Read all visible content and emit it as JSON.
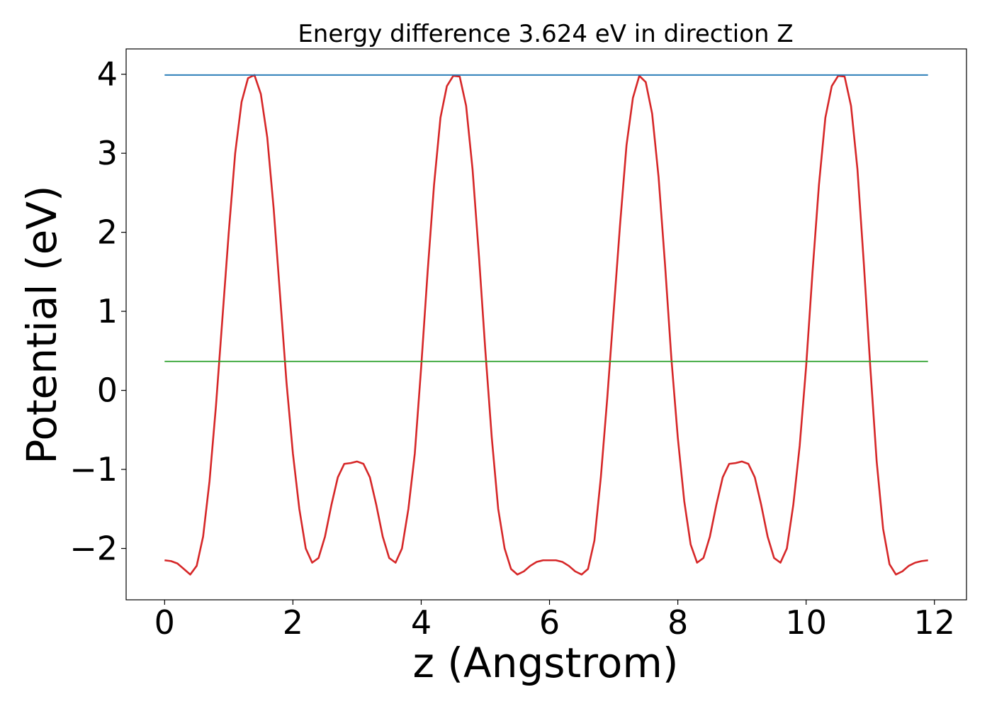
{
  "chart_data": {
    "type": "line",
    "title": "Energy difference 3.624 eV in direction Z",
    "xlabel": "z (Angstrom)",
    "ylabel": "Potential (eV)",
    "xlim": [
      -0.6,
      12.5
    ],
    "ylim": [
      -2.65,
      4.32
    ],
    "xticks": [
      0,
      2,
      4,
      6,
      8,
      10,
      12
    ],
    "xtick_labels": [
      "0",
      "2",
      "4",
      "6",
      "8",
      "10",
      "12"
    ],
    "yticks": [
      -2,
      -1,
      0,
      1,
      2,
      3,
      4
    ],
    "ytick_labels": [
      "−2",
      "−1",
      "0",
      "1",
      "2",
      "3",
      "4"
    ],
    "grid": false,
    "series": [
      {
        "color": "#d62728",
        "x": [
          0.0,
          0.1,
          0.2,
          0.3,
          0.4,
          0.5,
          0.6,
          0.7,
          0.8,
          0.9,
          1.0,
          1.1,
          1.2,
          1.3,
          1.4,
          1.5,
          1.6,
          1.7,
          1.8,
          1.9,
          2.0,
          2.1,
          2.2,
          2.3,
          2.4,
          2.5,
          2.6,
          2.7,
          2.8,
          2.9,
          3.0,
          3.1,
          3.2,
          3.3,
          3.4,
          3.5,
          3.6,
          3.7,
          3.8,
          3.9,
          4.0,
          4.1,
          4.2,
          4.3,
          4.4,
          4.5,
          4.6,
          4.7,
          4.8,
          4.9,
          5.0,
          5.1,
          5.2,
          5.3,
          5.4,
          5.5,
          5.6,
          5.7,
          5.8,
          5.9,
          6.0,
          6.1,
          6.2,
          6.3,
          6.4,
          6.5,
          6.6,
          6.7,
          6.8,
          6.9,
          7.0,
          7.1,
          7.2,
          7.3,
          7.4,
          7.5,
          7.6,
          7.7,
          7.8,
          7.9,
          8.0,
          8.1,
          8.2,
          8.3,
          8.4,
          8.5,
          8.6,
          8.7,
          8.8,
          8.9,
          9.0,
          9.1,
          9.2,
          9.3,
          9.4,
          9.5,
          9.6,
          9.7,
          9.8,
          9.9,
          10.0,
          10.1,
          10.2,
          10.3,
          10.4,
          10.5,
          10.6,
          10.7,
          10.8,
          10.9,
          11.0,
          11.1,
          11.2,
          11.3,
          11.4,
          11.5,
          11.6,
          11.7,
          11.8,
          11.9
        ],
        "y": [
          -2.15,
          -2.16,
          -2.19,
          -2.26,
          -2.33,
          -2.22,
          -1.85,
          -1.15,
          -0.2,
          0.9,
          2.0,
          3.0,
          3.65,
          3.95,
          3.99,
          3.75,
          3.2,
          2.3,
          1.2,
          0.1,
          -0.8,
          -1.5,
          -2.0,
          -2.18,
          -2.12,
          -1.85,
          -1.45,
          -1.1,
          -0.93,
          -0.92,
          -0.9,
          -0.93,
          -1.1,
          -1.45,
          -1.85,
          -2.12,
          -2.18,
          -2.0,
          -1.5,
          -0.8,
          0.3,
          1.5,
          2.6,
          3.45,
          3.85,
          3.98,
          3.97,
          3.6,
          2.8,
          1.7,
          0.5,
          -0.6,
          -1.5,
          -2.0,
          -2.26,
          -2.33,
          -2.29,
          -2.22,
          -2.17,
          -2.15,
          -2.15,
          -2.15,
          -2.17,
          -2.22,
          -2.29,
          -2.33,
          -2.26,
          -1.9,
          -1.1,
          -0.1,
          1.0,
          2.1,
          3.1,
          3.7,
          3.98,
          3.9,
          3.5,
          2.7,
          1.6,
          0.4,
          -0.6,
          -1.4,
          -1.95,
          -2.18,
          -2.12,
          -1.85,
          -1.45,
          -1.1,
          -0.93,
          -0.92,
          -0.9,
          -0.93,
          -1.1,
          -1.45,
          -1.85,
          -2.12,
          -2.18,
          -2.0,
          -1.45,
          -0.7,
          0.3,
          1.5,
          2.6,
          3.45,
          3.85,
          3.98,
          3.97,
          3.6,
          2.8,
          1.6,
          0.3,
          -0.9,
          -1.75,
          -2.2,
          -2.33,
          -2.29,
          -2.22,
          -2.18,
          -2.16,
          -2.15
        ]
      },
      {
        "color": "#1f77b4",
        "x": [
          0.0,
          11.9
        ],
        "y": [
          3.99,
          3.99
        ]
      },
      {
        "color": "#2ca02c",
        "x": [
          0.0,
          11.9
        ],
        "y": [
          0.366,
          0.366
        ]
      }
    ]
  }
}
